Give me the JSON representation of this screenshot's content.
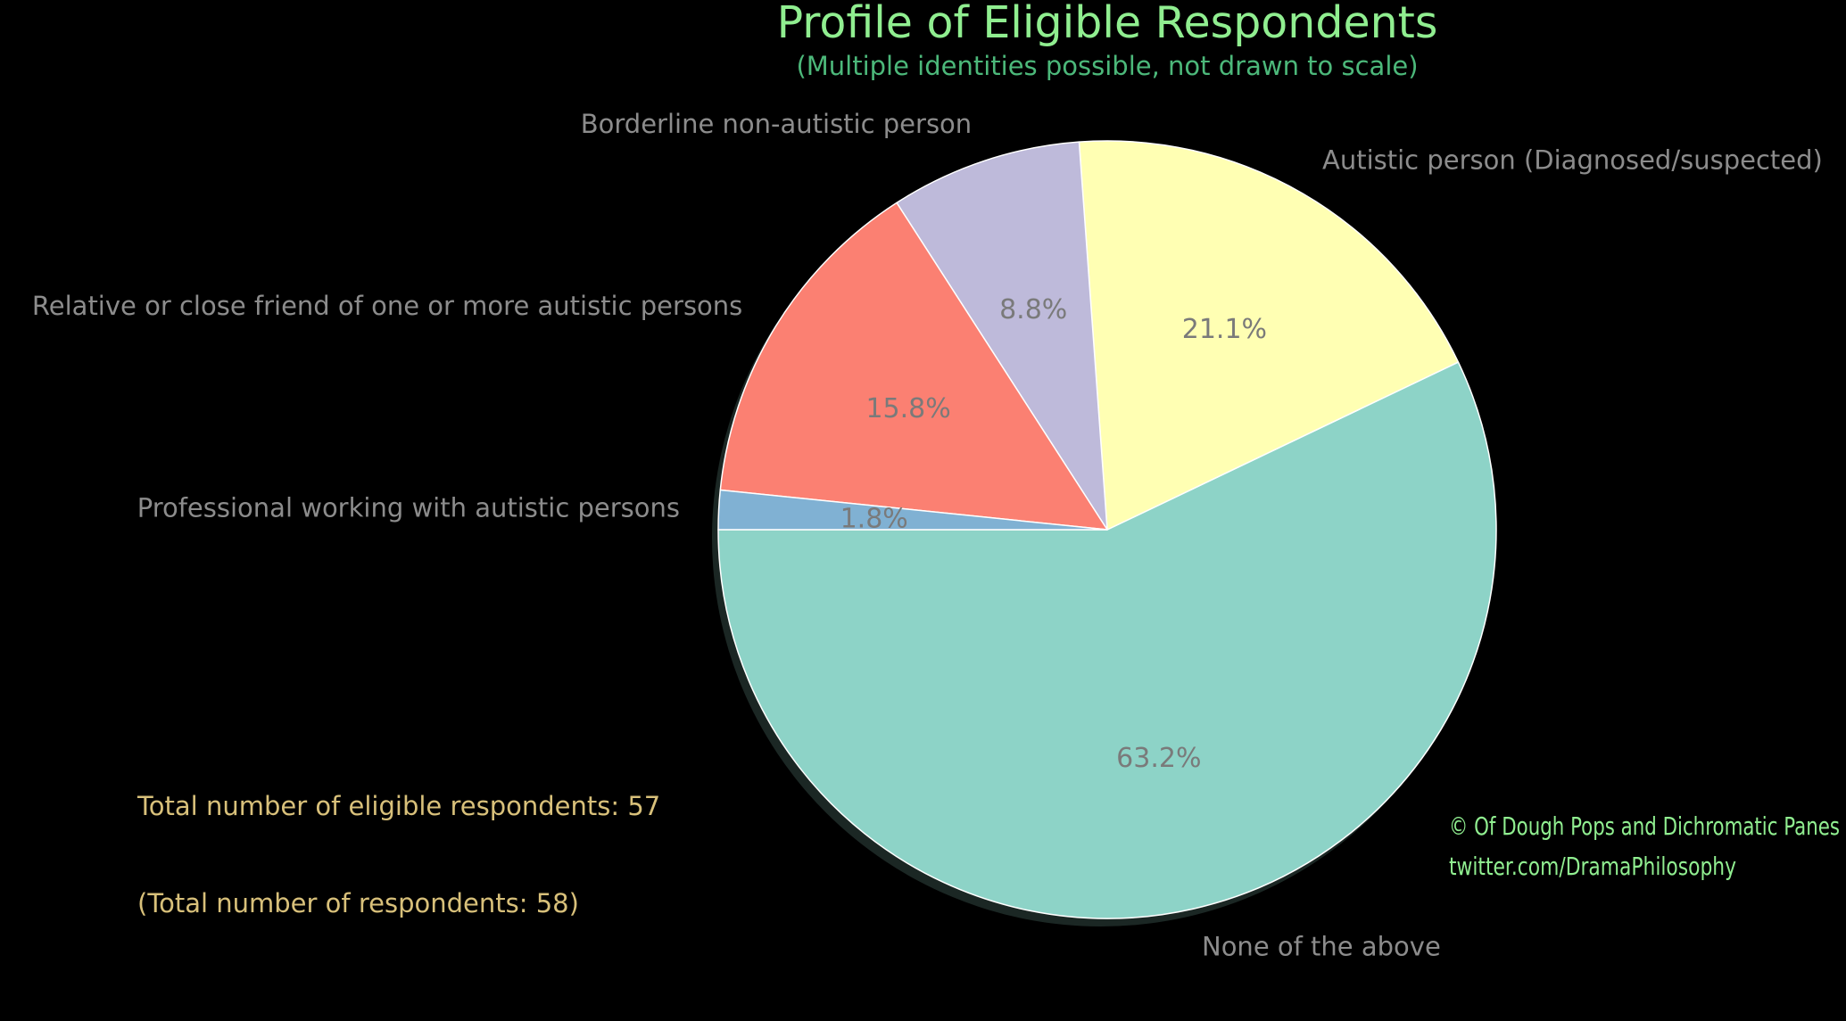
{
  "chart_data": {
    "type": "pie",
    "title": "Profile of Eligible Respondents",
    "subtitle": "(Multiple identities possible, not drawn to scale)",
    "slices": [
      {
        "label": "None of the above",
        "value": 63.2,
        "pct_label": "63.2%",
        "color": "#8dd3c7"
      },
      {
        "label": "Autistic person (Diagnosed/suspected)",
        "value": 21.1,
        "pct_label": "21.1%",
        "color": "#ffffb3"
      },
      {
        "label": "Borderline non-autistic person",
        "value": 8.8,
        "pct_label": "8.8%",
        "color": "#bebada"
      },
      {
        "label": "Relative or close friend of one or more autistic persons",
        "value": 15.8,
        "pct_label": "15.8%",
        "color": "#fb8072"
      },
      {
        "label": "Professional working with autistic persons",
        "value": 1.8,
        "pct_label": "1.8%",
        "color": "#80b1d3"
      }
    ],
    "start_angle_deg": 180,
    "direction": "counterclockwise",
    "shadow": true
  },
  "notes": {
    "eligible": "Total number of eligible respondents: 57",
    "total": "(Total number of respondents: 58)"
  },
  "credit": {
    "line1": "© Of Dough Pops and Dichromatic Panes",
    "line2": "twitter.com/DramaPhilosophy"
  },
  "colors": {
    "background": "#000000",
    "title": "#90ee90",
    "subtitle": "#4cb87a",
    "labels": "#8c8c8c",
    "notes": "#d8c07a",
    "credit": "#90ee90",
    "slice_edge": "#ffffff"
  }
}
